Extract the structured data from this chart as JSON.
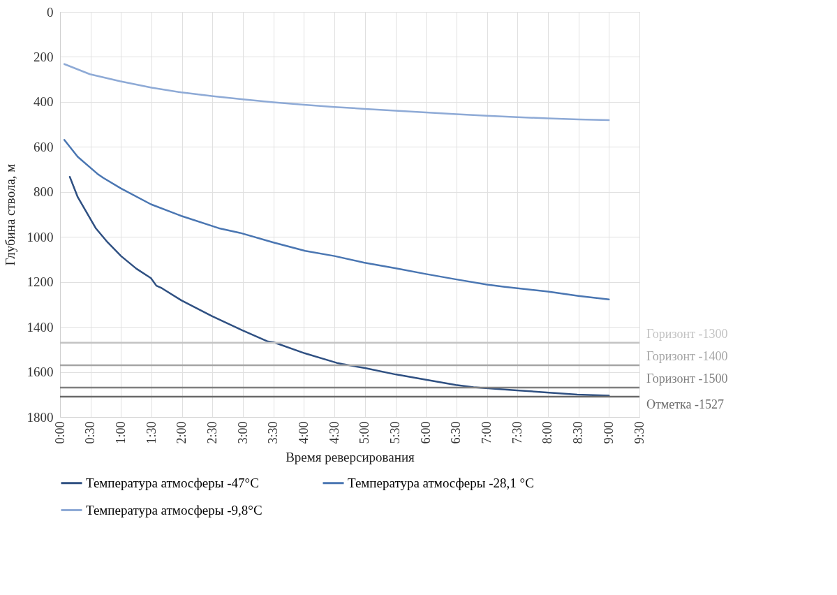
{
  "chart_data": {
    "type": "line",
    "xlabel": "Время реверсирования",
    "ylabel": "Глубина ствола, м",
    "xlim": [
      0,
      9.5
    ],
    "xticks": [
      {
        "value": 0,
        "label": "0:00"
      },
      {
        "value": 0.5,
        "label": "0:30"
      },
      {
        "value": 1,
        "label": "1:00"
      },
      {
        "value": 1.5,
        "label": "1:30"
      },
      {
        "value": 2,
        "label": "2:00"
      },
      {
        "value": 2.5,
        "label": "2:30"
      },
      {
        "value": 3,
        "label": "3:00"
      },
      {
        "value": 3.5,
        "label": "3:30"
      },
      {
        "value": 4,
        "label": "4:00"
      },
      {
        "value": 4.5,
        "label": "4:30"
      },
      {
        "value": 5,
        "label": "5:00"
      },
      {
        "value": 5.5,
        "label": "5:30"
      },
      {
        "value": 6,
        "label": "6:00"
      },
      {
        "value": 6.5,
        "label": "6:30"
      },
      {
        "value": 7,
        "label": "7:00"
      },
      {
        "value": 7.5,
        "label": "7:30"
      },
      {
        "value": 8,
        "label": "8:00"
      },
      {
        "value": 8.5,
        "label": "8:30"
      },
      {
        "value": 9,
        "label": "9:00"
      },
      {
        "value": 9.5,
        "label": "9:30"
      }
    ],
    "ylim": [
      1800,
      0
    ],
    "yticks": [
      0,
      200,
      400,
      600,
      800,
      1000,
      1200,
      1400,
      1600,
      1800
    ],
    "grid": true,
    "legend": "bottom",
    "series": [
      {
        "name": "Температура атмосферы -47°C",
        "color": "#2f5082",
        "x": [
          0.16,
          0.29,
          0.59,
          0.78,
          1.0,
          1.25,
          1.49,
          1.58,
          1.67,
          1.99,
          2.49,
          2.98,
          3.41,
          3.5,
          4.01,
          4.54,
          4.63,
          5.0,
          5.5,
          6.0,
          6.49,
          6.78,
          7.49,
          7.98,
          8.48,
          9.0
        ],
        "values": [
          733,
          823,
          963,
          1024,
          1085,
          1141,
          1183,
          1217,
          1228,
          1282,
          1352,
          1414,
          1465,
          1468,
          1517,
          1560,
          1565,
          1583,
          1611,
          1635,
          1658,
          1668,
          1682,
          1691,
          1701,
          1705
        ]
      },
      {
        "name": "Температура атмосферы -28,1 °C",
        "color": "#4a76b2",
        "x": [
          0.07,
          0.29,
          0.61,
          0.71,
          1.0,
          1.49,
          1.99,
          2.6,
          2.95,
          3.49,
          4.02,
          4.5,
          4.98,
          5.51,
          6.0,
          6.5,
          7.0,
          7.29,
          8.0,
          8.5,
          9.0
        ],
        "values": [
          569,
          644,
          719,
          738,
          785,
          855,
          907,
          961,
          982,
          1024,
          1062,
          1085,
          1114,
          1140,
          1165,
          1189,
          1212,
          1222,
          1243,
          1262,
          1278
        ]
      },
      {
        "name": "Температура атмосферы -9,8°C",
        "color": "#8eaad6",
        "x": [
          0.07,
          0.49,
          0.98,
          1.5,
          1.99,
          2.51,
          3.0,
          3.5,
          4.0,
          4.5,
          5.0,
          5.5,
          6.0,
          6.5,
          7.0,
          7.5,
          8.0,
          8.5,
          9.0
        ],
        "values": [
          232,
          277,
          308,
          337,
          358,
          375,
          389,
          402,
          413,
          423,
          431,
          439,
          447,
          455,
          462,
          468,
          473,
          478,
          481
        ]
      }
    ],
    "ref_lines": [
      {
        "axis": "y",
        "value": 1470,
        "label": "Горизонт -1300",
        "color": "#c3c3c3"
      },
      {
        "axis": "y",
        "value": 1570,
        "label": "Горизонт -1400",
        "color": "#a5a5a5"
      },
      {
        "axis": "y",
        "value": 1670,
        "label": "Горизонт -1500",
        "color": "#7f7f7f"
      },
      {
        "axis": "y",
        "value": 1710,
        "label": "Отметка -1527",
        "color": "#6a6a6a"
      }
    ]
  }
}
